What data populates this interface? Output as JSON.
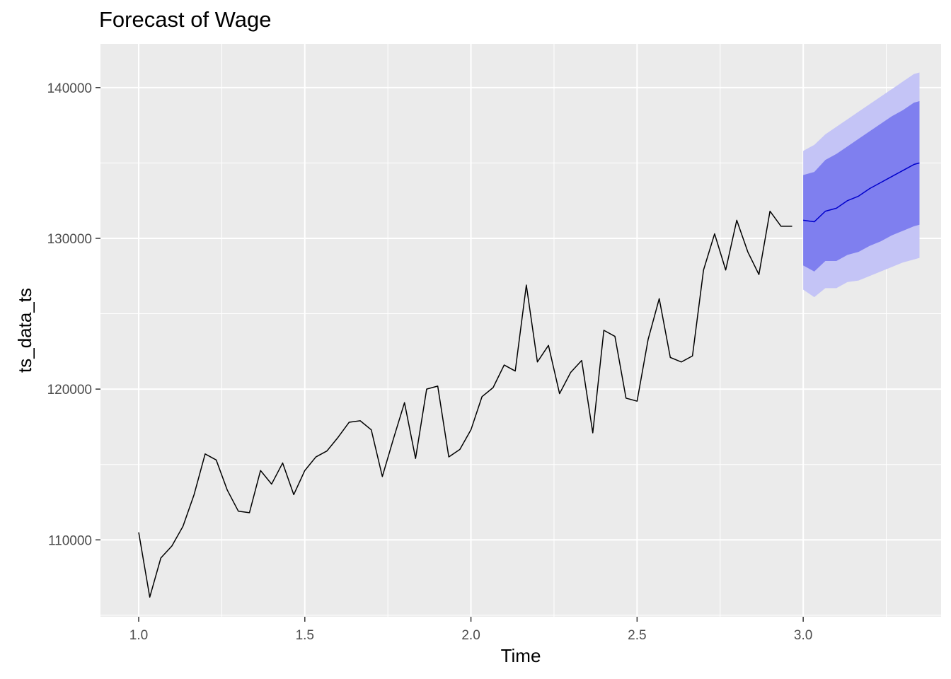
{
  "chart_data": {
    "type": "line",
    "title": "Forecast of Wage",
    "xlabel": "Time",
    "ylabel": "ts_data_ts",
    "xlim": [
      0.885,
      3.415
    ],
    "ylim": [
      104900,
      142900
    ],
    "x_ticks": [
      1.0,
      1.5,
      2.0,
      2.5,
      3.0
    ],
    "x_tick_labels": [
      "1.0",
      "1.5",
      "2.0",
      "2.5",
      "3.0"
    ],
    "x_minor_ticks": [
      1.25,
      1.75,
      2.25,
      2.75,
      3.25
    ],
    "y_ticks": [
      110000,
      120000,
      130000,
      140000
    ],
    "y_tick_labels": [
      "110000",
      "120000",
      "130000",
      "140000"
    ],
    "y_minor_ticks": [
      105000,
      115000,
      125000,
      135000
    ],
    "grid": true,
    "legend": "none",
    "colors": {
      "panel_background": "#ebebeb",
      "grid": "#ffffff",
      "history_line": "#000000",
      "forecast_line": "#0000cc",
      "band_80": "#7f7fef",
      "band_95": "#c4c4f6",
      "tick_label": "#4d4d4d",
      "tick_mark": "#333333"
    },
    "series": [
      {
        "x": [
          1.0,
          1.0333,
          1.0667,
          1.1,
          1.1333,
          1.1667,
          1.2,
          1.2333,
          1.2667,
          1.3,
          1.3333,
          1.3667,
          1.4,
          1.4333,
          1.4667,
          1.5,
          1.5333,
          1.5667,
          1.6,
          1.6333,
          1.6667,
          1.7,
          1.7333,
          1.7667,
          1.8,
          1.8333,
          1.8667,
          1.9,
          1.9333,
          1.9667,
          2.0,
          2.0333,
          2.0667,
          2.1,
          2.1333,
          2.1667,
          2.2,
          2.2333,
          2.2667,
          2.3,
          2.3333,
          2.3667,
          2.4,
          2.4333,
          2.4667,
          2.5,
          2.5333,
          2.5667,
          2.6,
          2.6333,
          2.6667,
          2.7,
          2.7333,
          2.7667,
          2.8,
          2.8333,
          2.8667,
          2.9,
          2.9333,
          2.9667
        ],
        "values": [
          110500,
          106200,
          108800,
          109600,
          110900,
          113000,
          115700,
          115300,
          113300,
          111900,
          111800,
          114600,
          113700,
          115100,
          113000,
          114600,
          115500,
          115900,
          116800,
          117800,
          117900,
          117300,
          114200,
          116700,
          119100,
          115400,
          120000,
          120200,
          115500,
          116000,
          117300,
          119500,
          120100,
          121600,
          121200,
          126900,
          121800,
          122900,
          119700,
          121100,
          121900,
          117100,
          123900,
          123500,
          119400,
          119200,
          123300,
          126000,
          122100,
          121800,
          122200,
          127900,
          130300,
          127900,
          131200,
          129100,
          127600,
          131800,
          130800,
          130800
        ]
      },
      {
        "name": "forecast",
        "x": [
          3.0,
          3.0333,
          3.0667,
          3.1,
          3.1333,
          3.1667,
          3.2,
          3.2333,
          3.2667,
          3.3,
          3.3333,
          3.35
        ],
        "values": [
          131200,
          131100,
          131800,
          132000,
          132500,
          132800,
          133300,
          133700,
          134100,
          134500,
          134900,
          135000
        ],
        "lo80": [
          128200,
          127800,
          128500,
          128500,
          128900,
          129100,
          129500,
          129800,
          130200,
          130500,
          130800,
          130900
        ],
        "hi80": [
          134200,
          134400,
          135200,
          135600,
          136100,
          136600,
          137100,
          137600,
          138100,
          138500,
          139000,
          139100
        ],
        "lo95": [
          126600,
          126100,
          126700,
          126700,
          127100,
          127200,
          127500,
          127800,
          128100,
          128400,
          128600,
          128700
        ],
        "hi95": [
          135800,
          136200,
          136900,
          137400,
          137900,
          138400,
          138900,
          139400,
          139900,
          140400,
          140900,
          141000
        ]
      }
    ]
  }
}
